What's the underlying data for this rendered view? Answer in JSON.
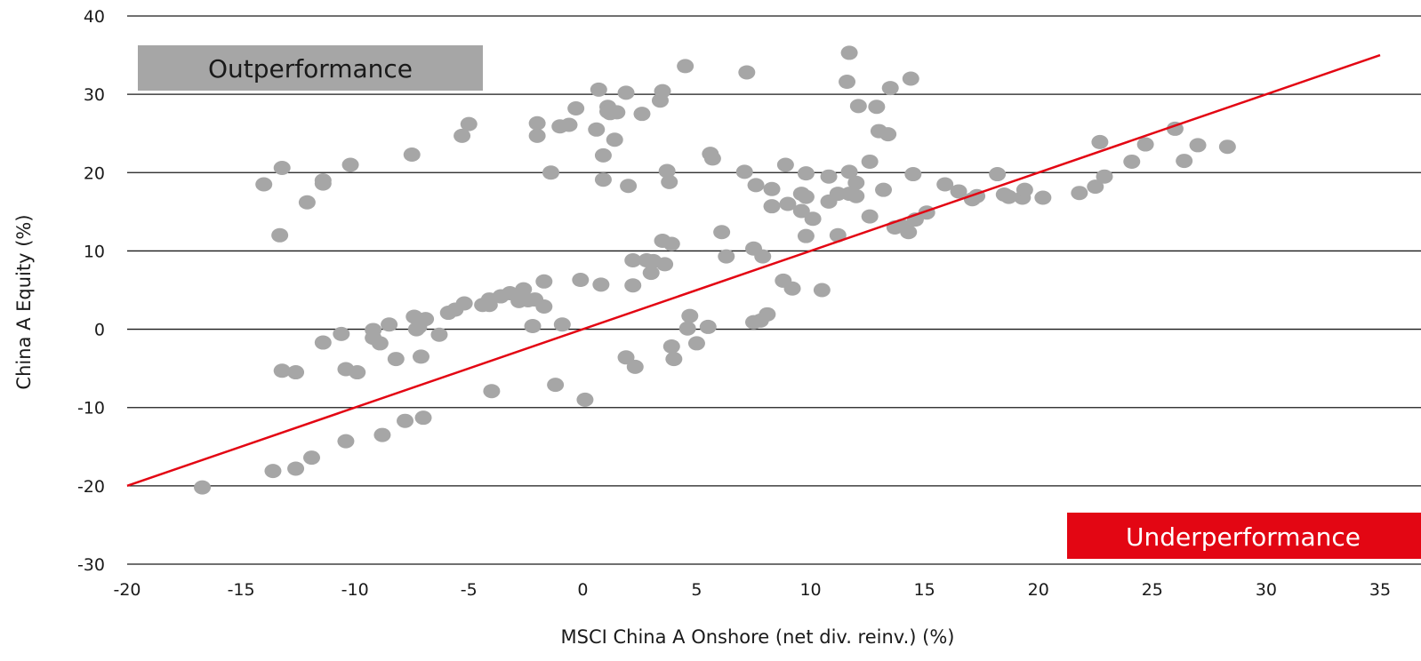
{
  "chart_data": {
    "type": "scatter",
    "title": "",
    "xlabel": "MSCI China A Onshore (net div. reinv.) (%)",
    "ylabel": "China A Equity (%)",
    "xlim": [
      -20,
      35
    ],
    "ylim": [
      -30,
      40
    ],
    "xticks": [
      -20,
      -15,
      -10,
      -5,
      0,
      5,
      10,
      15,
      20,
      25,
      30,
      35
    ],
    "yticks": [
      -30,
      -20,
      -10,
      0,
      10,
      20,
      30,
      40
    ],
    "grid": "horizontal",
    "point_color": "#a6a6a6",
    "line_color": "#e30613",
    "reference_line": {
      "x": [
        -20,
        35
      ],
      "y": [
        -20,
        35
      ]
    },
    "annotations": [
      {
        "text": "Outperformance",
        "position": "top-left",
        "bg": "#a6a6a6",
        "color": "#1a1a1a"
      },
      {
        "text": "Underperformance",
        "position": "bottom-right",
        "bg": "#e30613",
        "color": "#ffffff"
      }
    ],
    "points": [
      [
        -16.7,
        -20.2
      ],
      [
        -14.0,
        18.5
      ],
      [
        -13.6,
        -18.1
      ],
      [
        -13.3,
        12.0
      ],
      [
        -13.2,
        20.6
      ],
      [
        -13.2,
        -5.3
      ],
      [
        -12.6,
        -5.5
      ],
      [
        -12.6,
        -17.8
      ],
      [
        -12.1,
        16.2
      ],
      [
        -11.9,
        -16.4
      ],
      [
        -11.4,
        18.6
      ],
      [
        -11.4,
        19.0
      ],
      [
        -11.4,
        -1.7
      ],
      [
        -10.6,
        -0.6
      ],
      [
        -10.4,
        -5.1
      ],
      [
        -10.4,
        -14.3
      ],
      [
        -10.2,
        21.0
      ],
      [
        -9.9,
        -5.5
      ],
      [
        -9.2,
        -1.1
      ],
      [
        -9.2,
        -0.1
      ],
      [
        -8.9,
        -1.8
      ],
      [
        -8.8,
        -13.5
      ],
      [
        -8.5,
        0.6
      ],
      [
        -8.2,
        -3.8
      ],
      [
        -7.8,
        -11.7
      ],
      [
        -7.5,
        22.3
      ],
      [
        -7.4,
        1.6
      ],
      [
        -7.3,
        0.0
      ],
      [
        -7.2,
        0.3
      ],
      [
        -7.1,
        -3.5
      ],
      [
        -7.0,
        -11.3
      ],
      [
        -6.9,
        1.3
      ],
      [
        -6.3,
        -0.7
      ],
      [
        -5.9,
        2.1
      ],
      [
        -5.6,
        2.5
      ],
      [
        -5.3,
        24.7
      ],
      [
        -5.2,
        3.3
      ],
      [
        -5.0,
        26.2
      ],
      [
        -4.4,
        3.1
      ],
      [
        -4.1,
        3.1
      ],
      [
        -4.1,
        3.8
      ],
      [
        -4.0,
        -7.9
      ],
      [
        -3.6,
        4.2
      ],
      [
        -3.2,
        4.6
      ],
      [
        -2.8,
        3.6
      ],
      [
        -2.6,
        5.1
      ],
      [
        -2.4,
        3.7
      ],
      [
        -2.2,
        0.4
      ],
      [
        -2.1,
        3.8
      ],
      [
        -2.0,
        26.3
      ],
      [
        -2.0,
        24.7
      ],
      [
        -1.7,
        6.1
      ],
      [
        -1.7,
        2.9
      ],
      [
        -1.4,
        20.0
      ],
      [
        -1.2,
        -7.1
      ],
      [
        -1.0,
        25.9
      ],
      [
        -0.9,
        0.6
      ],
      [
        -0.6,
        26.1
      ],
      [
        -0.3,
        28.2
      ],
      [
        -0.1,
        6.3
      ],
      [
        0.1,
        -9.0
      ],
      [
        0.6,
        25.5
      ],
      [
        0.7,
        30.6
      ],
      [
        0.8,
        5.7
      ],
      [
        0.9,
        22.2
      ],
      [
        0.9,
        19.1
      ],
      [
        1.1,
        28.4
      ],
      [
        1.1,
        27.8
      ],
      [
        1.2,
        27.6
      ],
      [
        1.4,
        24.2
      ],
      [
        1.5,
        27.7
      ],
      [
        1.9,
        -3.6
      ],
      [
        1.9,
        30.2
      ],
      [
        2.0,
        18.3
      ],
      [
        2.2,
        8.8
      ],
      [
        2.2,
        5.6
      ],
      [
        2.3,
        -4.8
      ],
      [
        2.6,
        27.5
      ],
      [
        2.8,
        8.8
      ],
      [
        3.0,
        7.2
      ],
      [
        3.1,
        8.7
      ],
      [
        3.4,
        29.2
      ],
      [
        3.5,
        11.3
      ],
      [
        3.5,
        30.4
      ],
      [
        3.6,
        8.3
      ],
      [
        3.7,
        20.2
      ],
      [
        3.8,
        18.8
      ],
      [
        3.9,
        10.9
      ],
      [
        3.9,
        -2.2
      ],
      [
        4.0,
        -3.8
      ],
      [
        4.5,
        33.6
      ],
      [
        4.6,
        0.1
      ],
      [
        4.7,
        1.7
      ],
      [
        5.0,
        -1.8
      ],
      [
        5.5,
        0.3
      ],
      [
        5.6,
        22.4
      ],
      [
        5.7,
        21.8
      ],
      [
        6.1,
        12.4
      ],
      [
        6.3,
        9.3
      ],
      [
        7.1,
        20.1
      ],
      [
        7.2,
        32.8
      ],
      [
        7.5,
        10.3
      ],
      [
        7.5,
        0.9
      ],
      [
        7.6,
        18.4
      ],
      [
        7.8,
        1.1
      ],
      [
        7.9,
        9.3
      ],
      [
        8.1,
        1.9
      ],
      [
        8.3,
        17.9
      ],
      [
        8.3,
        15.7
      ],
      [
        8.8,
        6.2
      ],
      [
        8.9,
        21.0
      ],
      [
        9.0,
        16.0
      ],
      [
        9.2,
        5.2
      ],
      [
        9.6,
        17.3
      ],
      [
        9.6,
        15.1
      ],
      [
        9.8,
        19.9
      ],
      [
        9.8,
        16.9
      ],
      [
        9.8,
        11.9
      ],
      [
        10.1,
        14.1
      ],
      [
        10.5,
        5.0
      ],
      [
        10.8,
        16.3
      ],
      [
        10.8,
        19.5
      ],
      [
        11.2,
        17.3
      ],
      [
        11.2,
        12.0
      ],
      [
        11.6,
        31.6
      ],
      [
        11.7,
        35.3
      ],
      [
        11.7,
        20.1
      ],
      [
        11.7,
        17.3
      ],
      [
        12.0,
        17.0
      ],
      [
        12.0,
        18.7
      ],
      [
        12.1,
        28.5
      ],
      [
        12.6,
        21.4
      ],
      [
        12.6,
        14.4
      ],
      [
        12.9,
        28.4
      ],
      [
        13.0,
        25.3
      ],
      [
        13.2,
        17.8
      ],
      [
        13.4,
        24.9
      ],
      [
        13.5,
        30.8
      ],
      [
        13.7,
        13.0
      ],
      [
        14.0,
        13.2
      ],
      [
        14.3,
        12.4
      ],
      [
        14.4,
        32.0
      ],
      [
        14.5,
        19.8
      ],
      [
        14.6,
        14.0
      ],
      [
        15.1,
        14.9
      ],
      [
        15.9,
        18.5
      ],
      [
        16.5,
        17.6
      ],
      [
        17.1,
        16.6
      ],
      [
        17.3,
        17.0
      ],
      [
        18.2,
        19.8
      ],
      [
        18.5,
        17.2
      ],
      [
        18.7,
        16.9
      ],
      [
        19.3,
        16.8
      ],
      [
        19.4,
        17.8
      ],
      [
        20.2,
        16.8
      ],
      [
        21.8,
        17.4
      ],
      [
        22.5,
        18.2
      ],
      [
        22.7,
        23.9
      ],
      [
        22.9,
        19.5
      ],
      [
        24.1,
        21.4
      ],
      [
        24.7,
        23.6
      ],
      [
        26.0,
        25.6
      ],
      [
        26.4,
        21.5
      ],
      [
        27.0,
        23.5
      ],
      [
        28.3,
        23.3
      ]
    ]
  }
}
